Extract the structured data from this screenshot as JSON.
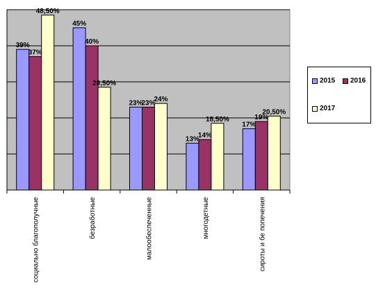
{
  "chart_data": {
    "type": "bar",
    "categories": [
      "социально благополучные",
      "безработные",
      "малообеспеченные",
      "многодетные",
      "сироты и бе попечения"
    ],
    "series": [
      {
        "name": "2015",
        "values": [
          39,
          45,
          23,
          13,
          17
        ],
        "labels": [
          "39%",
          "45%",
          "23%",
          "13%",
          "17%"
        ],
        "color": "#9999ff"
      },
      {
        "name": "2016",
        "values": [
          37,
          40,
          23,
          14,
          19
        ],
        "labels": [
          "37%",
          "40%",
          "23%",
          "14%",
          "19%"
        ],
        "color": "#993366"
      },
      {
        "name": "2017",
        "values": [
          48.5,
          28.5,
          24,
          18.5,
          20.5
        ],
        "labels": [
          "48,50%",
          "28,50%",
          "24%",
          "18,50%",
          "20,50%"
        ],
        "color": "#ffffcc"
      }
    ],
    "ylim": [
      0,
      50
    ],
    "grid": true,
    "legend_position": "right",
    "plot_background": "#c0c0c0"
  }
}
